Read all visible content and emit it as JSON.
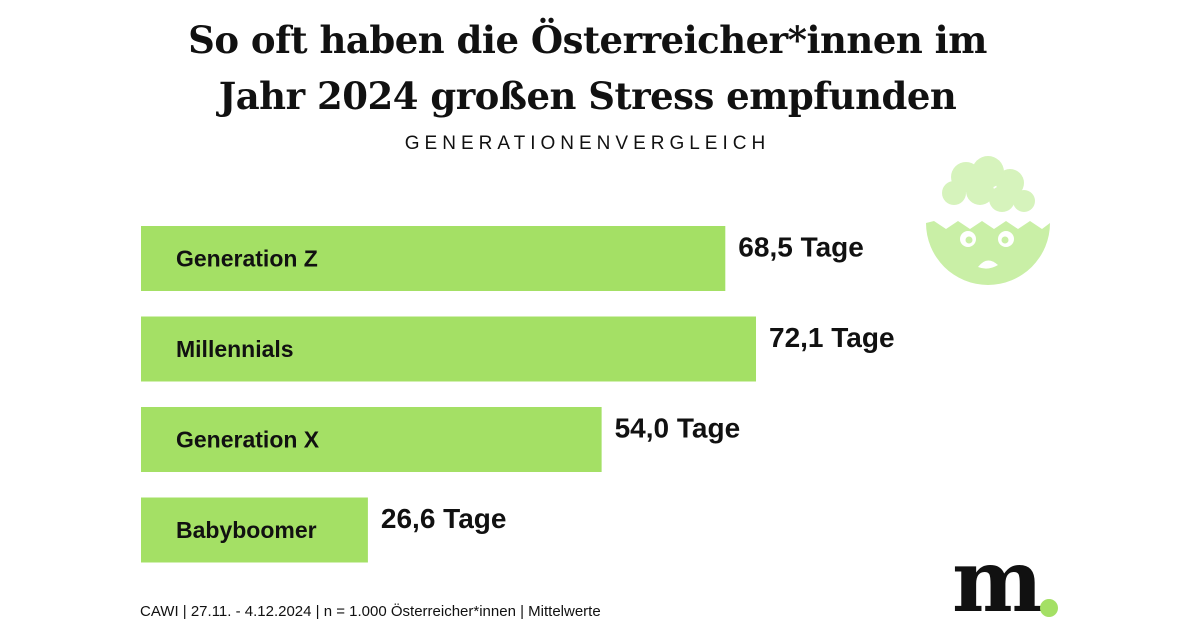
{
  "title": {
    "line1": "So oft haben die Österreicher*innen im",
    "line2": "Jahr 2024 großen Stress empfunden"
  },
  "subtitle": "GENERATIONENVERGLEICH",
  "footer": "CAWI | 27.11. - 4.12.2024 | n = 1.000 Österreicher*innen | Mittelwerte",
  "logo": {
    "text": "m",
    "dot_color": "#a4e065"
  },
  "icon": {
    "name": "stressed-face-icon",
    "color": "#c9efa6"
  },
  "colors": {
    "bar": "#a4e065",
    "text": "#111111",
    "background": "#ffffff"
  },
  "chart_data": {
    "type": "bar",
    "orientation": "horizontal",
    "title": "So oft haben die Österreicher*innen im Jahr 2024 großen Stress empfunden",
    "subtitle": "GENERATIONENVERGLEICH",
    "categories": [
      "Generation Z",
      "Millennials",
      "Generation X",
      "Babyboomer"
    ],
    "values": [
      68.5,
      72.1,
      54.0,
      26.6
    ],
    "value_labels": [
      "68,5 Tage",
      "72,1 Tage",
      "54,0 Tage",
      "26,6 Tage"
    ],
    "unit": "Tage",
    "grid": false,
    "legend": "none"
  }
}
